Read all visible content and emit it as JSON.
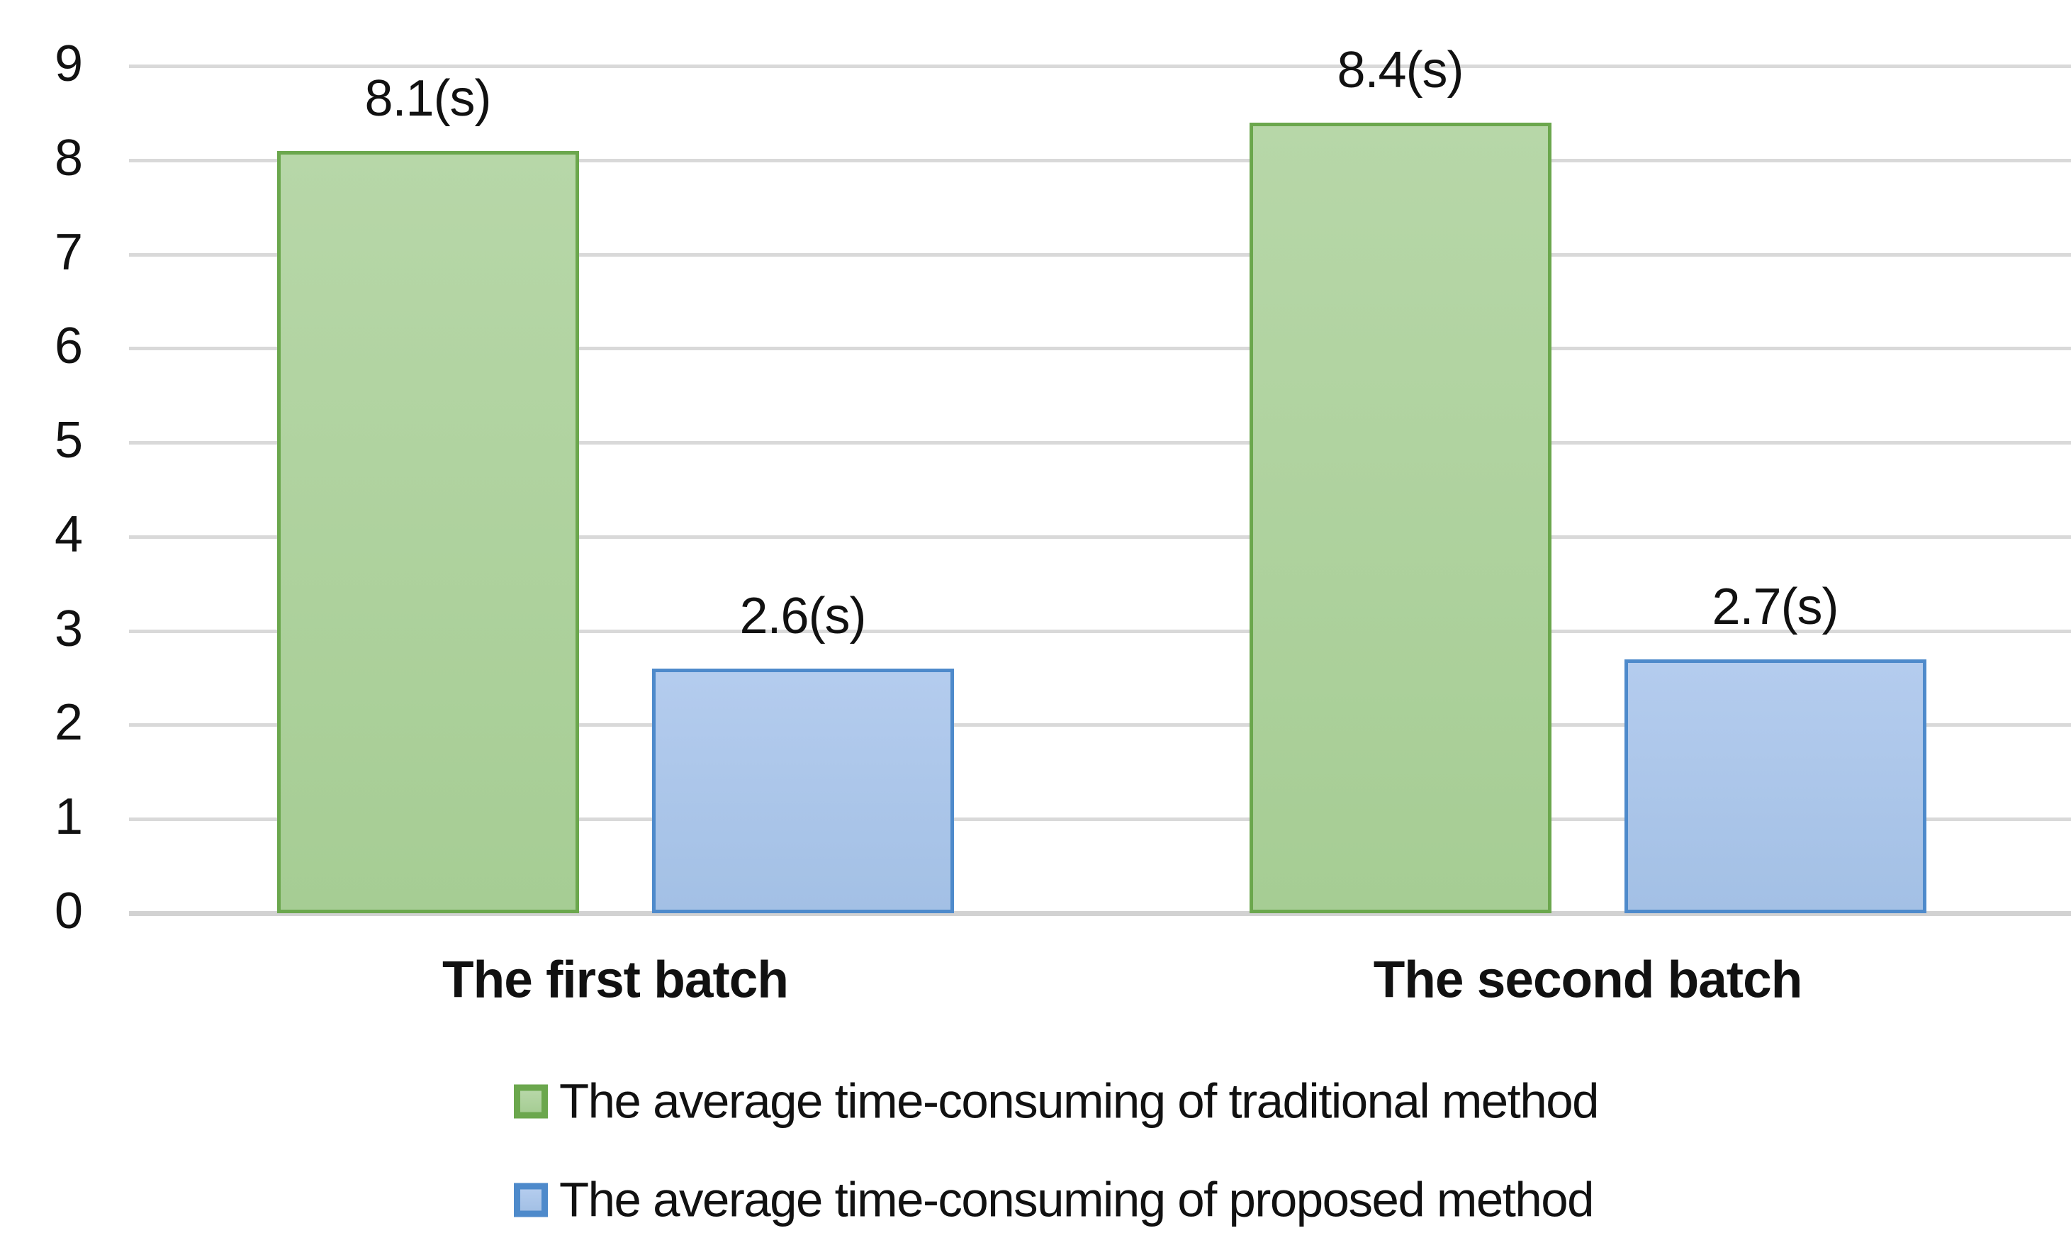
{
  "chart_data": {
    "type": "bar",
    "title": "",
    "xlabel": "",
    "ylabel": "",
    "categories": [
      "The first batch",
      "The second batch"
    ],
    "series": [
      {
        "name": "The average time-consuming of traditional method",
        "values": [
          8.1,
          8.4
        ],
        "value_labels": [
          "8.1(s)",
          "8.4(s)"
        ],
        "border_color": "#6BA74D",
        "fill_top": "#B7D7A8",
        "fill_bottom": "#A6CD94"
      },
      {
        "name": "The average time-consuming of proposed method",
        "values": [
          2.6,
          2.7
        ],
        "value_labels": [
          "2.6(s)",
          "2.7(s)"
        ],
        "border_color": "#4E8ACB",
        "fill_top": "#B4CCEE",
        "fill_bottom": "#A3C0E5"
      }
    ],
    "ylim": [
      0,
      9
    ],
    "yticks": [
      0,
      1,
      2,
      3,
      4,
      5,
      6,
      7,
      8,
      9
    ],
    "grid": "horizontal",
    "gridline_color": "#D9D9D9",
    "axis_line_color": "#D2D2D2",
    "text_color": "#111111",
    "background": "#FFFFFF",
    "legend_position": "bottom-left-aligned-rows"
  }
}
